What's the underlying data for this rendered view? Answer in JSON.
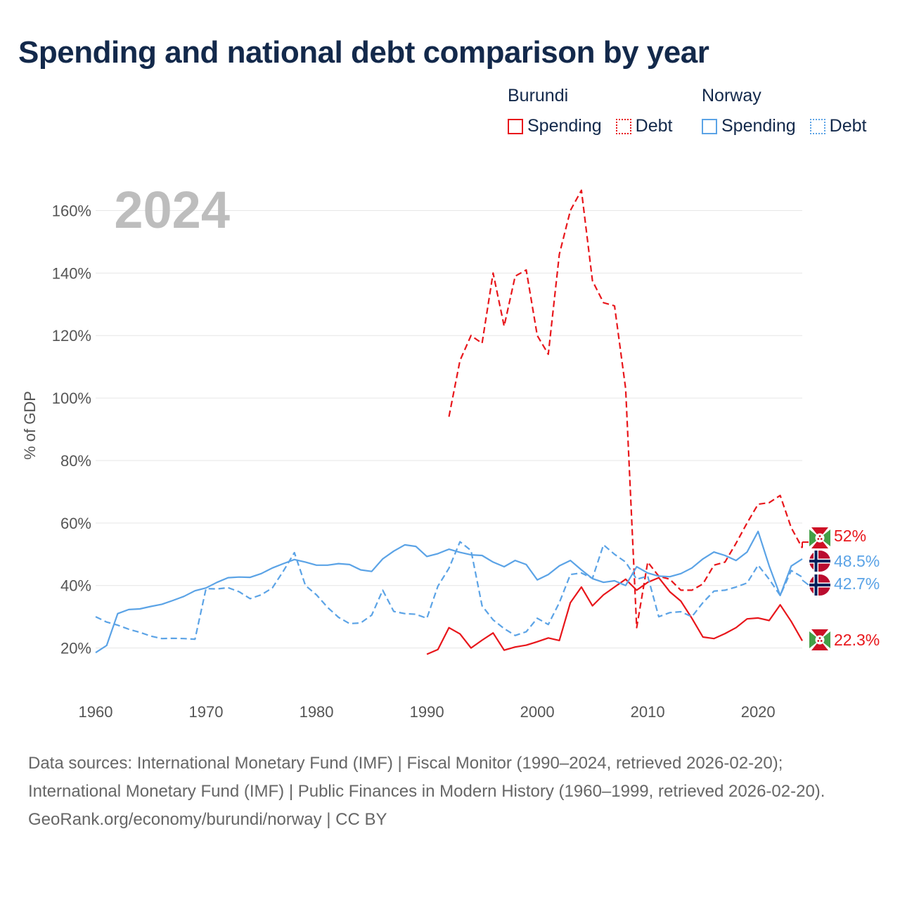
{
  "title": "Spending and national debt comparison by year",
  "legend": {
    "groups": [
      {
        "country": "Burundi",
        "color": "#e8161b",
        "items": [
          {
            "label": "Spending",
            "style": "solid"
          },
          {
            "label": "Debt",
            "style": "dotted"
          }
        ]
      },
      {
        "country": "Norway",
        "color": "#5ba3e6",
        "items": [
          {
            "label": "Spending",
            "style": "solid"
          },
          {
            "label": "Debt",
            "style": "dotted"
          }
        ]
      }
    ]
  },
  "year_watermark": "2024",
  "end_labels": {
    "burundi_debt": "52%",
    "norway_spending": "48.5%",
    "norway_debt": "42.7%",
    "burundi_spending": "22.3%"
  },
  "footer": {
    "sources": "Data sources: International Monetary Fund (IMF) | Fiscal Monitor (1990–2024, retrieved 2026-02-20); International Monetary Fund (IMF) | Public Finances in Modern History (1960–1999, retrieved 2026-02-20).",
    "credit": "GeoRank.org/economy/burundi/norway | CC BY"
  },
  "chart_data": {
    "type": "line",
    "title": "Spending and national debt comparison by year",
    "xlabel": "",
    "ylabel": "% of GDP",
    "xlim": [
      1960,
      2024
    ],
    "ylim": [
      10,
      170
    ],
    "x_ticks": [
      1960,
      1970,
      1980,
      1990,
      2000,
      2010,
      2020
    ],
    "y_ticks": [
      20,
      40,
      60,
      80,
      100,
      120,
      140,
      160
    ],
    "y_tick_suffix": "%",
    "grid": true,
    "legend_position": "top-right",
    "series": [
      {
        "name": "Burundi Spending",
        "color": "#e8161b",
        "dash": "solid",
        "x": [
          1990,
          1991,
          1992,
          1993,
          1994,
          1995,
          1996,
          1997,
          1998,
          1999,
          2000,
          2001,
          2002,
          2003,
          2004,
          2005,
          2006,
          2007,
          2008,
          2009,
          2010,
          2011,
          2012,
          2013,
          2014,
          2015,
          2016,
          2017,
          2018,
          2019,
          2020,
          2021,
          2022,
          2023,
          2024
        ],
        "values": [
          18,
          19.5,
          26.5,
          24.5,
          20,
          22.5,
          24.8,
          19.3,
          20.3,
          20.9,
          22,
          23.2,
          22.4,
          34.5,
          39.5,
          33.5,
          37,
          39.5,
          42,
          38.5,
          41,
          42.5,
          38,
          35,
          29.5,
          23.5,
          23,
          24.6,
          26.5,
          29.3,
          29.6,
          28.8,
          33.8,
          28.5,
          22.3
        ]
      },
      {
        "name": "Burundi Debt",
        "color": "#e8161b",
        "dash": "dashed",
        "x": [
          1992,
          1993,
          1994,
          1995,
          1996,
          1997,
          1998,
          1999,
          2000,
          2001,
          2002,
          2003,
          2004,
          2005,
          2006,
          2007,
          2008,
          2009,
          2010,
          2011,
          2012,
          2013,
          2014,
          2015,
          2016,
          2017,
          2018,
          2019,
          2020,
          2021,
          2022,
          2023,
          2024
        ],
        "values": [
          94,
          112,
          120,
          117.5,
          140,
          123,
          139,
          141,
          120,
          114,
          146,
          160,
          166.5,
          137.5,
          130.5,
          129.5,
          103,
          26.5,
          47.5,
          43,
          42,
          38.5,
          38.5,
          40.5,
          46.5,
          47.5,
          53.5,
          60,
          66,
          66.5,
          68.8,
          58.5,
          52
        ]
      },
      {
        "name": "Norway Spending",
        "color": "#5ba3e6",
        "dash": "solid",
        "x": [
          1960,
          1961,
          1962,
          1963,
          1964,
          1965,
          1966,
          1967,
          1968,
          1969,
          1970,
          1971,
          1972,
          1973,
          1974,
          1975,
          1976,
          1977,
          1978,
          1979,
          1980,
          1981,
          1982,
          1983,
          1984,
          1985,
          1986,
          1987,
          1988,
          1989,
          1990,
          1991,
          1992,
          1993,
          1994,
          1995,
          1996,
          1997,
          1998,
          1999,
          2000,
          2001,
          2002,
          2003,
          2004,
          2005,
          2006,
          2007,
          2008,
          2009,
          2010,
          2011,
          2012,
          2013,
          2014,
          2015,
          2016,
          2017,
          2018,
          2019,
          2020,
          2021,
          2022,
          2023,
          2024
        ],
        "values": [
          18.5,
          20.8,
          31,
          32.3,
          32.5,
          33.3,
          34,
          35.2,
          36.5,
          38.3,
          39.2,
          41,
          42.5,
          42.7,
          42.6,
          43.8,
          45.6,
          47,
          48.3,
          47.5,
          46.5,
          46.5,
          47,
          46.7,
          45,
          44.5,
          48.5,
          51,
          53,
          52.5,
          49.3,
          50.2,
          51.6,
          50.6,
          49.8,
          49.6,
          47.5,
          46,
          48,
          46.7,
          41.8,
          43.5,
          46.3,
          48,
          45,
          42.2,
          41,
          41.5,
          40,
          46,
          44,
          43,
          42.8,
          43.8,
          45.6,
          48.5,
          50.7,
          49.6,
          48,
          50.7,
          57.3,
          46.3,
          36.8,
          46.2,
          48.5
        ]
      },
      {
        "name": "Norway Debt",
        "color": "#5ba3e6",
        "dash": "dashed",
        "x": [
          1960,
          1961,
          1962,
          1963,
          1964,
          1965,
          1966,
          1967,
          1968,
          1969,
          1970,
          1971,
          1972,
          1973,
          1974,
          1975,
          1976,
          1977,
          1978,
          1979,
          1980,
          1981,
          1982,
          1983,
          1984,
          1985,
          1986,
          1987,
          1988,
          1989,
          1990,
          1991,
          1992,
          1993,
          1994,
          1995,
          1996,
          1997,
          1998,
          1999,
          2000,
          2001,
          2002,
          2003,
          2004,
          2005,
          2006,
          2007,
          2008,
          2009,
          2010,
          2011,
          2012,
          2013,
          2014,
          2015,
          2016,
          2017,
          2018,
          2019,
          2020,
          2021,
          2022,
          2023,
          2024
        ],
        "values": [
          30,
          28.3,
          27.3,
          26,
          25,
          23.8,
          23,
          23.1,
          23,
          22.8,
          39,
          38.9,
          39.3,
          38,
          35.8,
          37,
          39.2,
          44.6,
          50.5,
          40,
          37,
          33,
          29.8,
          27.8,
          28,
          30.5,
          38.5,
          31.7,
          31,
          30.8,
          29.5,
          39.8,
          45.5,
          54,
          51.2,
          33.5,
          29,
          26.2,
          24,
          25.2,
          29.5,
          27.5,
          34.5,
          43.5,
          44,
          42.3,
          53,
          50,
          47.5,
          42,
          43,
          30,
          31.3,
          31.6,
          30,
          34.5,
          38.2,
          38.5,
          39.5,
          40.8,
          46.5,
          42,
          36.8,
          44.8,
          42.7
        ]
      }
    ]
  }
}
